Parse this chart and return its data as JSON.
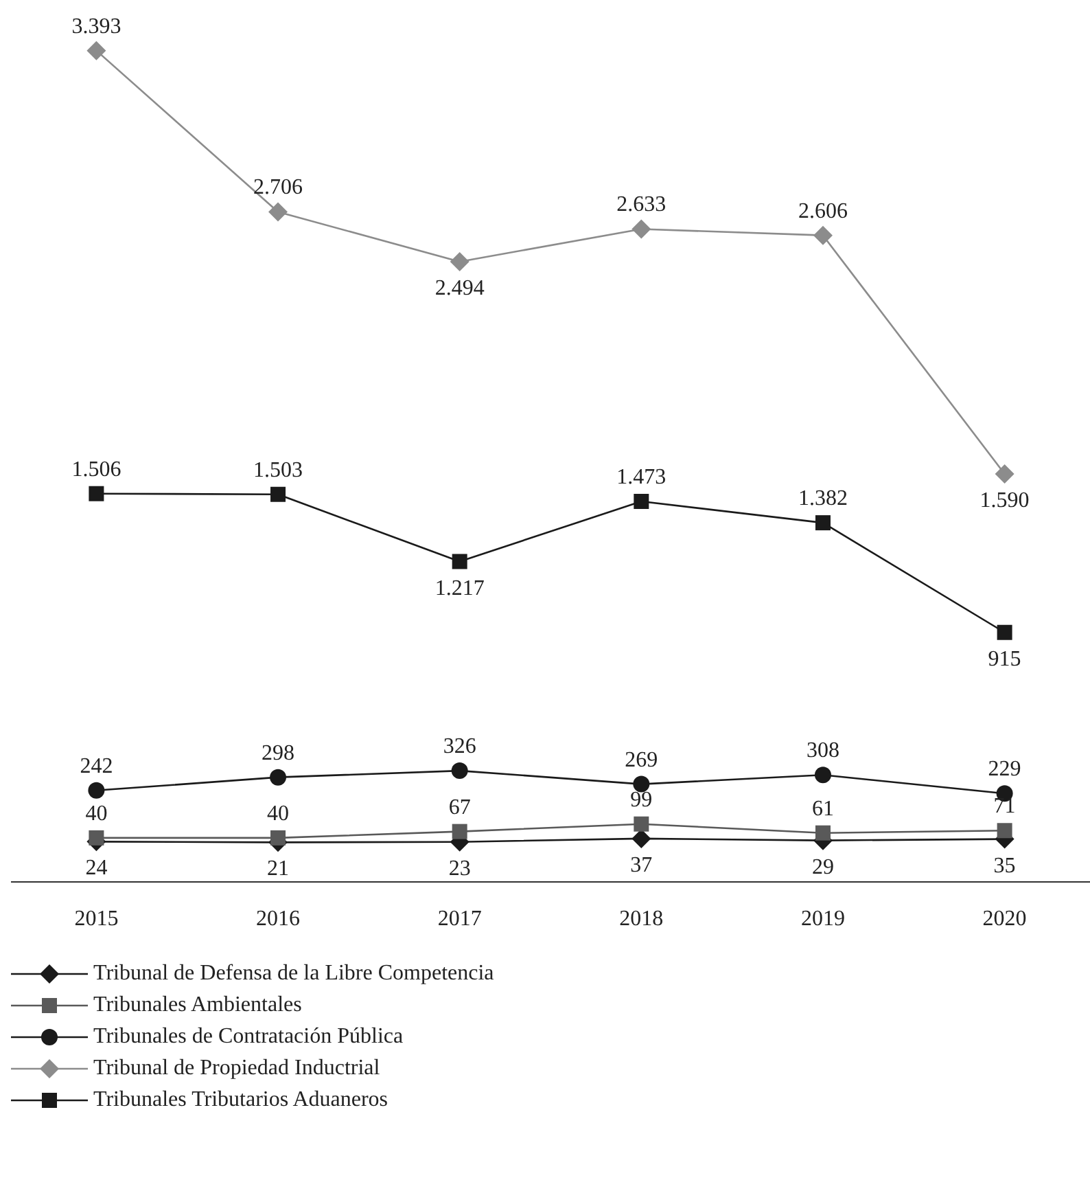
{
  "chart_data": {
    "type": "line",
    "categories": [
      "2015",
      "2016",
      "2017",
      "2018",
      "2019",
      "2020"
    ],
    "series": [
      {
        "name": "Tribunal de Defensa de la Libre Competencia",
        "color": "#1a1a1a",
        "marker": "diamond",
        "values": [
          24,
          21,
          23,
          37,
          29,
          35
        ],
        "value_labels": [
          "24",
          "21",
          "23",
          "37",
          "29",
          "35"
        ]
      },
      {
        "name": "Tribunales Ambientales",
        "color": "#595959",
        "marker": "square",
        "values": [
          40,
          40,
          67,
          99,
          61,
          71
        ],
        "value_labels": [
          "40",
          "40",
          "67",
          "99",
          "61",
          "71"
        ]
      },
      {
        "name": "Tribunales de Contratación Pública",
        "color": "#1a1a1a",
        "marker": "circle",
        "values": [
          242,
          298,
          326,
          269,
          308,
          229
        ],
        "value_labels": [
          "242",
          "298",
          "326",
          "269",
          "308",
          "229"
        ]
      },
      {
        "name": "Tribunal de Propiedad Inductrial",
        "color": "#8c8c8c",
        "marker": "diamond",
        "values": [
          3393,
          2706,
          2494,
          2633,
          2606,
          1590
        ],
        "value_labels": [
          "3.393",
          "2.706",
          "2.494",
          "2.633",
          "2.606",
          "1.590"
        ]
      },
      {
        "name": "Tribunales Tributarios Aduaneros",
        "color": "#1a1a1a",
        "marker": "square",
        "values": [
          1506,
          1503,
          1217,
          1473,
          1382,
          915
        ],
        "value_labels": [
          "1.506",
          "1.503",
          "1.217",
          "1.473",
          "1.382",
          "915"
        ]
      }
    ],
    "grid": false,
    "legend": "bottom",
    "line_style": "solid"
  }
}
